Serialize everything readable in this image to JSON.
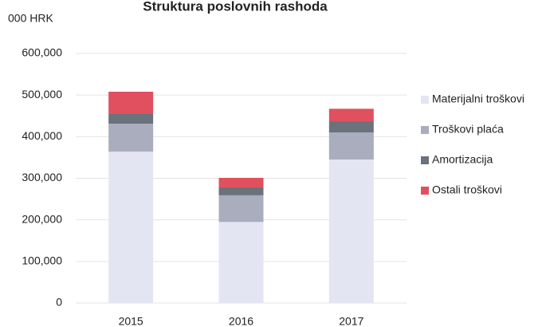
{
  "chart_data": {
    "type": "stacked_bar",
    "title": "Struktura poslovnih rashoda",
    "y_label": "000 HRK",
    "categories": [
      "2015",
      "2016",
      "2017"
    ],
    "series": [
      {
        "name": "Materijalni troškovi",
        "color": "#e3e5f2",
        "values": [
          364000,
          195000,
          345000
        ]
      },
      {
        "name": "Troškovi plaća",
        "color": "#a9adbd",
        "values": [
          67000,
          64000,
          65000
        ]
      },
      {
        "name": "Amortizacija",
        "color": "#6a727c",
        "values": [
          25000,
          19000,
          27000
        ]
      },
      {
        "name": "Ostali troškovi",
        "color": "#e0505e",
        "values": [
          52000,
          23000,
          30000
        ]
      }
    ],
    "ylim": [
      0,
      600000
    ],
    "yticks": [
      0,
      {
        "value": 100000,
        "label": "100,000"
      },
      {
        "value": 200000,
        "label": "200,000"
      },
      {
        "value": 300000,
        "label": "300,000"
      },
      {
        "value": 400000,
        "label": "400,000"
      },
      {
        "value": 500000,
        "label": "500,000"
      },
      {
        "value": 600000,
        "label": "600,000"
      }
    ],
    "grid": true,
    "legend": "right"
  }
}
